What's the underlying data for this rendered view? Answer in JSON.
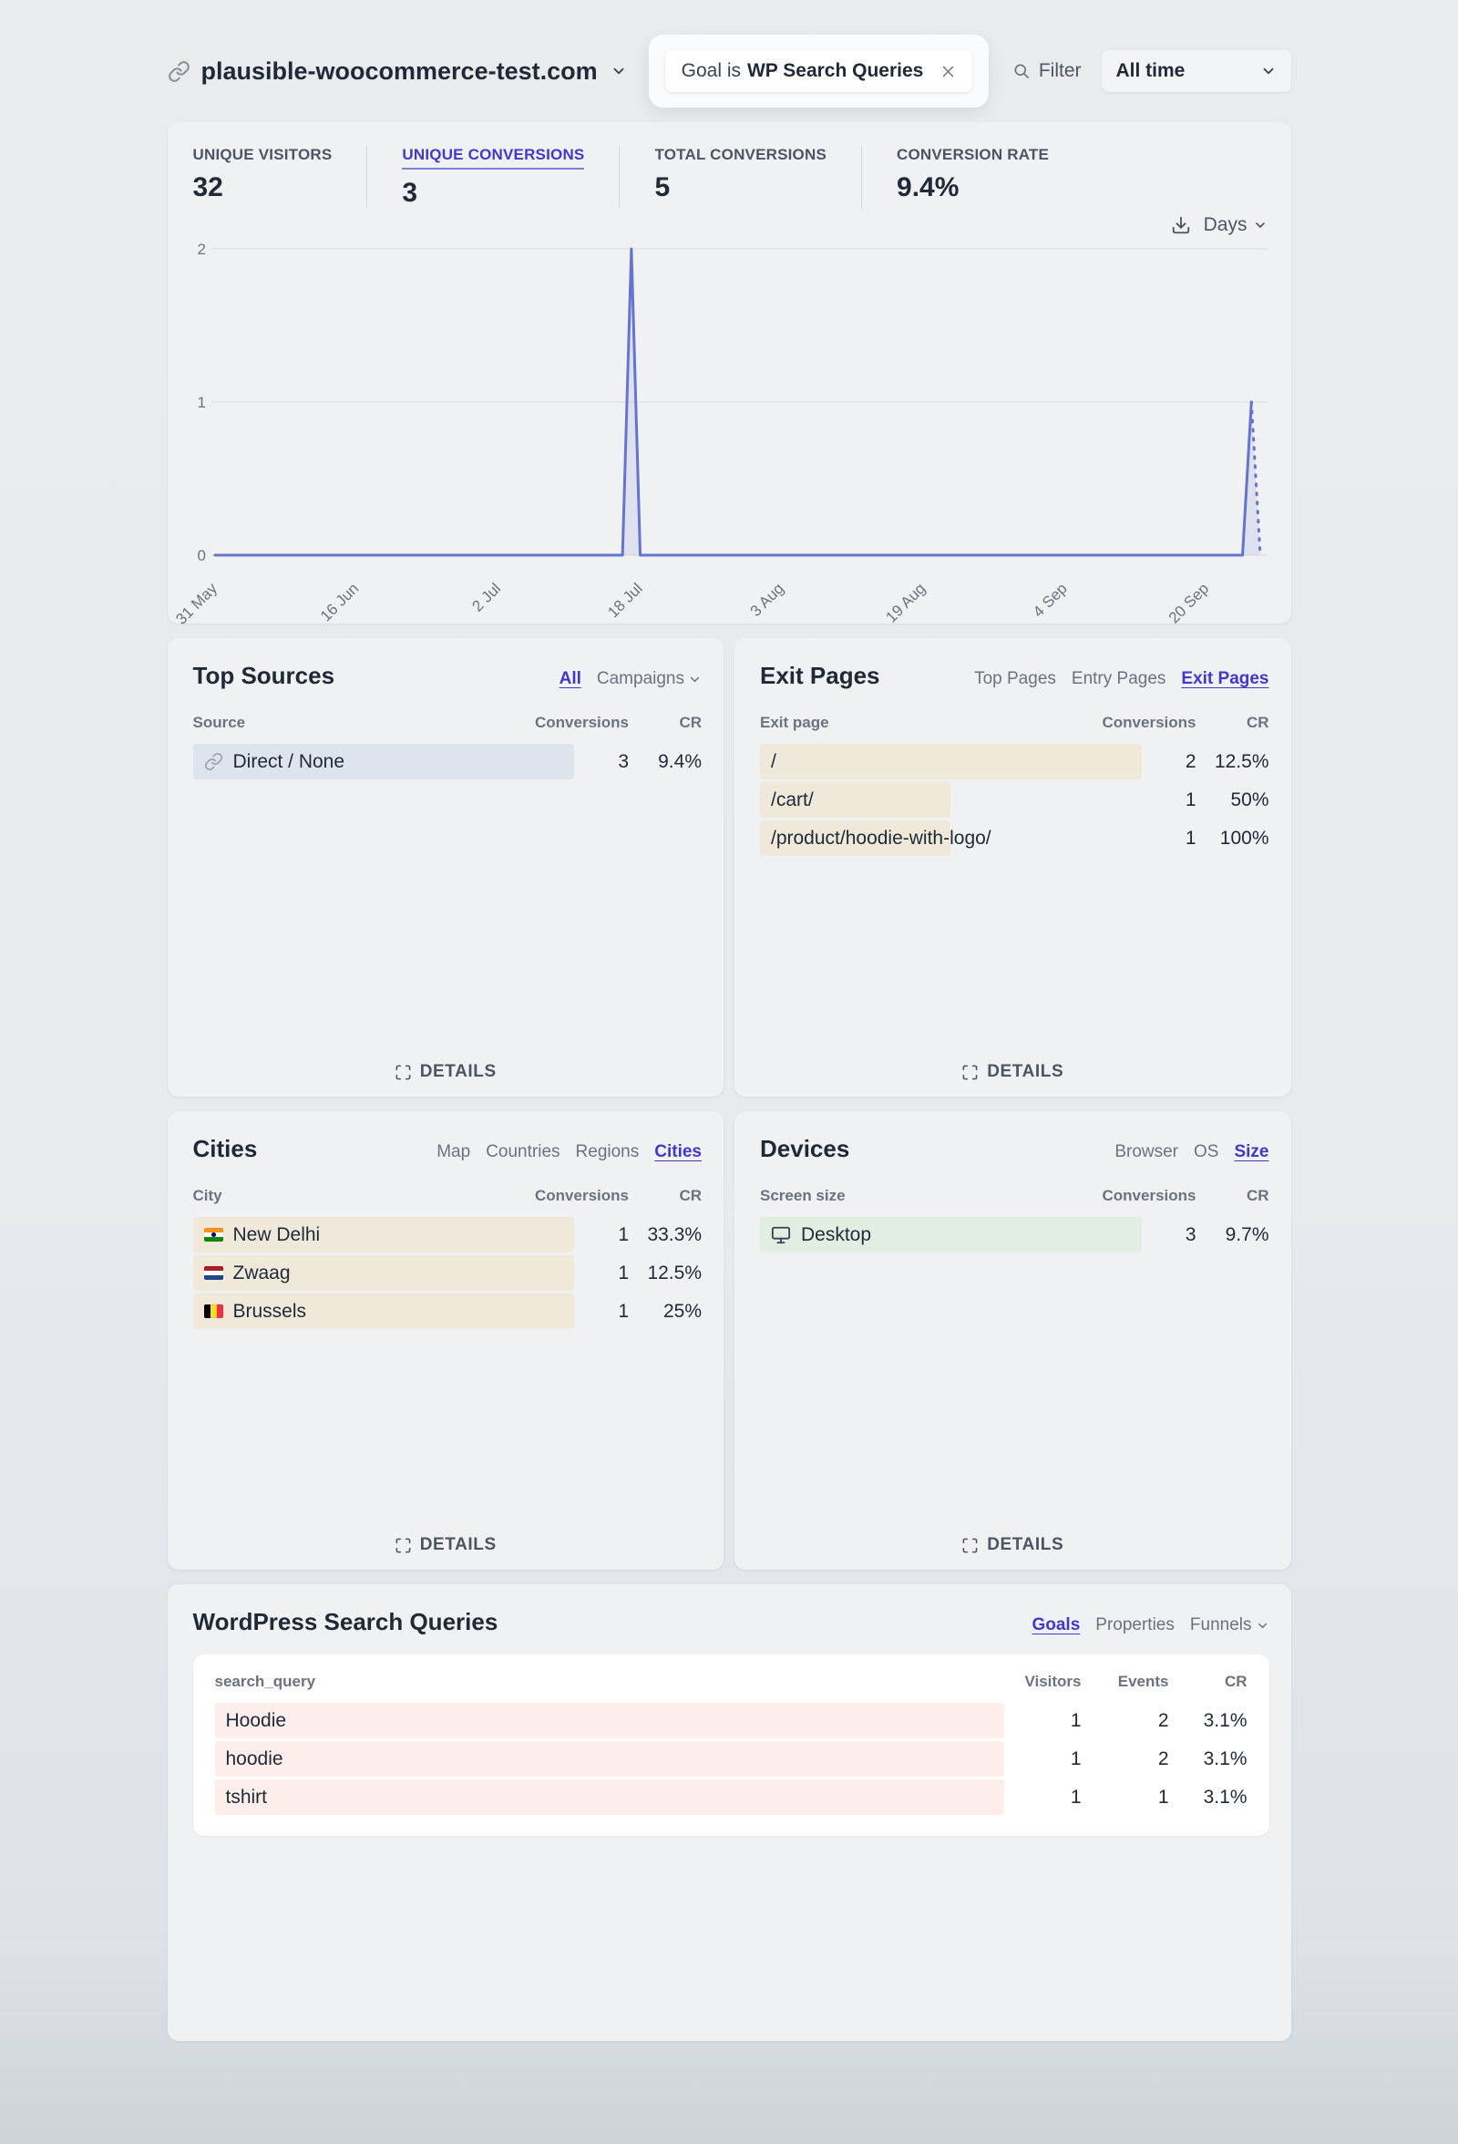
{
  "header": {
    "site_name": "plausible-woocommerce-test.com",
    "goal_filter": {
      "prefix": "Goal is",
      "value": "WP Search Queries"
    },
    "filter_label": "Filter",
    "period": "All time"
  },
  "metrics": [
    {
      "label": "UNIQUE VISITORS",
      "value": "32",
      "active": false
    },
    {
      "label": "UNIQUE CONVERSIONS",
      "value": "3",
      "active": true
    },
    {
      "label": "TOTAL CONVERSIONS",
      "value": "5",
      "active": false
    },
    {
      "label": "CONVERSION RATE",
      "value": "9.4%",
      "active": false
    }
  ],
  "chart": {
    "interval_label": "Days"
  },
  "chart_data": {
    "type": "line",
    "series_name": "Unique conversions",
    "total_days": 118,
    "points": [
      [
        0,
        0
      ],
      [
        46,
        0
      ],
      [
        47,
        2
      ],
      [
        48,
        0
      ],
      [
        116,
        0
      ],
      [
        117,
        1
      ],
      [
        118,
        0
      ]
    ],
    "dashed_from_day": 117,
    "x_ticks": [
      {
        "day": 0,
        "label": "31 May"
      },
      {
        "day": 16,
        "label": "16 Jun"
      },
      {
        "day": 32,
        "label": "2 Jul"
      },
      {
        "day": 48,
        "label": "18 Jul"
      },
      {
        "day": 64,
        "label": "3 Aug"
      },
      {
        "day": 80,
        "label": "19 Aug"
      },
      {
        "day": 96,
        "label": "4 Sep"
      },
      {
        "day": 112,
        "label": "20 Sep"
      }
    ],
    "y_ticks": [
      0,
      1,
      2
    ],
    "ylim": [
      0,
      2
    ],
    "line_color": "#6574cd",
    "fill_color": "rgba(101,116,205,0.12)",
    "grid": true,
    "legend": "none"
  },
  "panels": [
    {
      "id": "top_sources",
      "title": "Top Sources",
      "tabs": [
        {
          "label": "All",
          "active": true
        },
        {
          "label": "Campaigns",
          "chevron": true
        }
      ],
      "name_col": "Source",
      "num_cols": [
        "Conversions",
        "CR"
      ],
      "rows": [
        {
          "label": "Direct / None",
          "icon": "link",
          "bar_pct": 75,
          "bar_color": "#dde4ee",
          "nums": [
            "3",
            "9.4%"
          ]
        }
      ],
      "details_label": "DETAILS"
    },
    {
      "id": "exit_pages",
      "title": "Exit Pages",
      "tabs": [
        {
          "label": "Top Pages"
        },
        {
          "label": "Entry Pages"
        },
        {
          "label": "Exit Pages",
          "active": true
        }
      ],
      "name_col": "Exit page",
      "num_cols": [
        "Conversions",
        "CR"
      ],
      "rows": [
        {
          "label": "/",
          "bar_pct": 75,
          "bar_color": "#f0e9da",
          "nums": [
            "2",
            "12.5%"
          ]
        },
        {
          "label": "/cart/",
          "bar_pct": 37.5,
          "bar_color": "#f0e9da",
          "nums": [
            "1",
            "50%"
          ]
        },
        {
          "label": "/product/hoodie-with-logo/",
          "bar_pct": 37.5,
          "bar_color": "#f0e9da",
          "nums": [
            "1",
            "100%"
          ]
        }
      ],
      "details_label": "DETAILS"
    },
    {
      "id": "cities",
      "title": "Cities",
      "tabs": [
        {
          "label": "Map"
        },
        {
          "label": "Countries"
        },
        {
          "label": "Regions"
        },
        {
          "label": "Cities",
          "active": true
        }
      ],
      "name_col": "City",
      "num_cols": [
        "Conversions",
        "CR"
      ],
      "rows": [
        {
          "label": "New Delhi",
          "flag": "in",
          "bar_pct": 75,
          "bar_color": "#f0e9da",
          "nums": [
            "1",
            "33.3%"
          ]
        },
        {
          "label": "Zwaag",
          "flag": "nl",
          "bar_pct": 75,
          "bar_color": "#f0e9da",
          "nums": [
            "1",
            "12.5%"
          ]
        },
        {
          "label": "Brussels",
          "flag": "be",
          "bar_pct": 75,
          "bar_color": "#f0e9da",
          "nums": [
            "1",
            "25%"
          ]
        }
      ],
      "details_label": "DETAILS"
    },
    {
      "id": "devices",
      "title": "Devices",
      "tabs": [
        {
          "label": "Browser"
        },
        {
          "label": "OS"
        },
        {
          "label": "Size",
          "active": true
        }
      ],
      "name_col": "Screen size",
      "num_cols": [
        "Conversions",
        "CR"
      ],
      "rows": [
        {
          "label": "Desktop",
          "icon": "desktop",
          "bar_pct": 75,
          "bar_color": "#e2eee1",
          "nums": [
            "3",
            "9.7%"
          ]
        }
      ],
      "details_label": "DETAILS"
    },
    {
      "id": "search_queries",
      "title": "WordPress Search Queries",
      "tabs": [
        {
          "label": "Goals",
          "active": true
        },
        {
          "label": "Properties"
        },
        {
          "label": "Funnels",
          "chevron": true
        }
      ],
      "name_col": "search_query",
      "num_cols": [
        "Visitors",
        "Events",
        "CR"
      ],
      "white_table": true,
      "rows": [
        {
          "label": "Hoodie",
          "bar_pct": 76.5,
          "bar_color": "#fdedeb",
          "nums": [
            "1",
            "2",
            "3.1%"
          ]
        },
        {
          "label": "hoodie",
          "bar_pct": 76.5,
          "bar_color": "#fdedeb",
          "nums": [
            "1",
            "2",
            "3.1%"
          ]
        },
        {
          "label": "tshirt",
          "bar_pct": 76.5,
          "bar_color": "#fdedeb",
          "nums": [
            "1",
            "1",
            "3.1%"
          ]
        }
      ]
    }
  ]
}
